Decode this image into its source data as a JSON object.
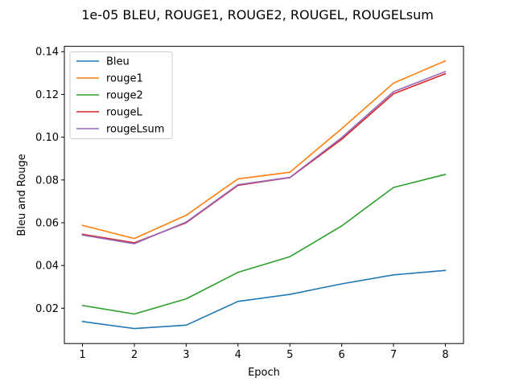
{
  "chart_data": {
    "type": "line",
    "title": "1e-05 BLEU, ROUGE1, ROUGE2, ROUGEL, ROUGELsum",
    "xlabel": "Epoch",
    "ylabel": "Bleu and Rouge",
    "x": [
      1,
      2,
      3,
      4,
      5,
      6,
      7,
      8
    ],
    "xlim": [
      0.65,
      8.35
    ],
    "ylim": [
      0.0035,
      0.1425
    ],
    "xticks": [
      1,
      2,
      3,
      4,
      5,
      6,
      7,
      8
    ],
    "yticks": [
      0.02,
      0.04,
      0.06,
      0.08,
      0.1,
      0.12,
      0.14
    ],
    "ytick_labels": [
      "0.02",
      "0.04",
      "0.06",
      "0.08",
      "0.10",
      "0.12",
      "0.14"
    ],
    "grid": false,
    "legend_position": "upper left",
    "series": [
      {
        "name": "Bleu",
        "color": "#1f77b4",
        "values": [
          0.0138,
          0.0105,
          0.0121,
          0.0232,
          0.0265,
          0.0314,
          0.0356,
          0.0377
        ]
      },
      {
        "name": "rouge1",
        "color": "#ff7f0e",
        "values": [
          0.0588,
          0.0526,
          0.0635,
          0.0805,
          0.0836,
          0.104,
          0.1253,
          0.1357
        ]
      },
      {
        "name": "rouge2",
        "color": "#2ca02c",
        "values": [
          0.0213,
          0.0173,
          0.0244,
          0.0368,
          0.0441,
          0.0585,
          0.0765,
          0.0826
        ]
      },
      {
        "name": "rougeL",
        "color": "#d62728",
        "values": [
          0.0546,
          0.0506,
          0.06,
          0.0775,
          0.0811,
          0.099,
          0.1203,
          0.1297
        ]
      },
      {
        "name": "rougeLsum",
        "color": "#9467bd",
        "values": [
          0.0542,
          0.0502,
          0.0603,
          0.0778,
          0.0812,
          0.0998,
          0.1213,
          0.1307
        ]
      }
    ]
  }
}
